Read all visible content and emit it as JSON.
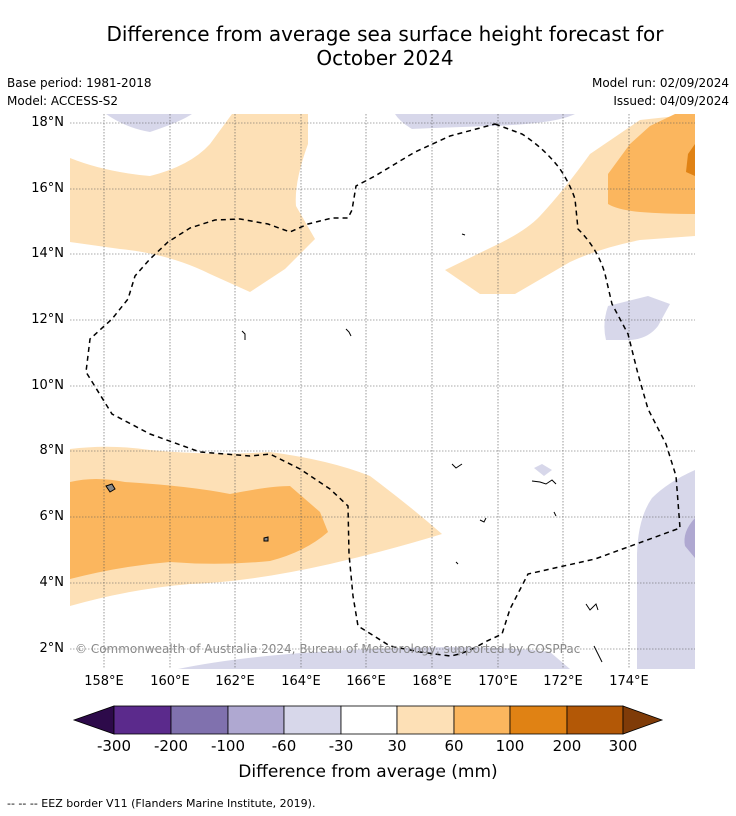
{
  "title_line1": "Difference from average sea surface height forecast for",
  "title_line2": "October 2024",
  "base_period": "Base period: 1981-2018",
  "model": "Model: ACCESS-S2",
  "model_run": "Model run: 02/09/2024",
  "issued": "Issued: 04/09/2024",
  "copyright": "© Commonwealth of Australia 2024, Bureau of Meteorology, supported by COSPPac",
  "footnote": "--  --  -- EEZ border V11 (Flanders Marine Institute, 2019).",
  "latitude_labels": [
    "18°N",
    "16°N",
    "14°N",
    "12°N",
    "10°N",
    "8°N",
    "6°N",
    "4°N",
    "2°N"
  ],
  "longitude_labels": [
    "158°E",
    "160°E",
    "162°E",
    "164°E",
    "166°E",
    "168°E",
    "170°E",
    "172°E",
    "174°E"
  ],
  "colorbar": {
    "title": "Difference from average (mm)",
    "tick_labels": [
      "-300",
      "-200",
      "-100",
      "-60",
      "-30",
      "30",
      "60",
      "100",
      "200",
      "300"
    ],
    "colors": [
      "#2d0a4a",
      "#5b2a8c",
      "#8071ae",
      "#afa8d1",
      "#d7d7ea",
      "#ffffff",
      "#fde0b6",
      "#fbb65e",
      "#e08214",
      "#b35806",
      "#7f3b08"
    ]
  },
  "chart_data": {
    "type": "map",
    "title": "Difference from average sea surface height forecast for October 2024",
    "lon_range": [
      157,
      176
    ],
    "lat_range": [
      1.5,
      18.5
    ],
    "levels_mm": [
      -300,
      -200,
      -100,
      -60,
      -30,
      30,
      60,
      100,
      200,
      300
    ],
    "unit": "mm"
  }
}
